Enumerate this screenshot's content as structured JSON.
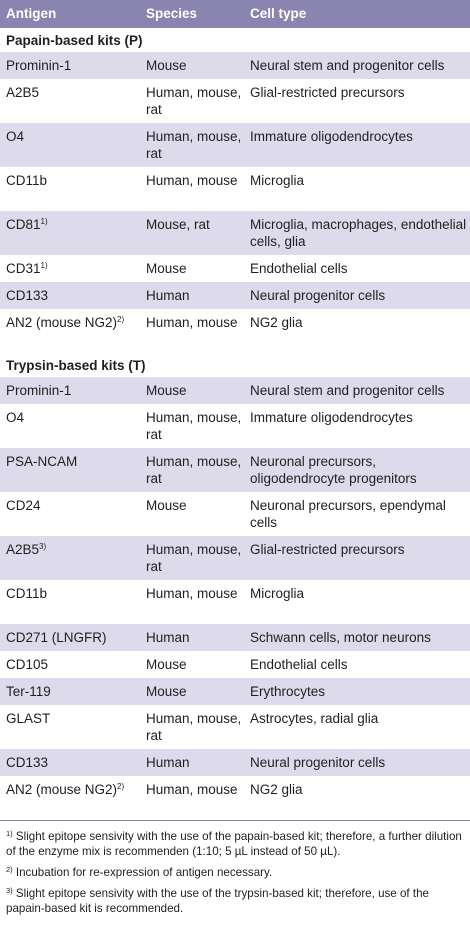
{
  "headers": {
    "antigen": "Antigen",
    "species": "Species",
    "cell_type": "Cell type"
  },
  "papain": {
    "title": "Papain-based kits (P)",
    "rows": [
      {
        "antigen": "Prominin-1",
        "sup": "",
        "species": "Mouse",
        "cell": "Neural stem and progenitor cells"
      },
      {
        "antigen": "A2B5",
        "sup": "",
        "species": "Human, mouse, rat",
        "cell": "Glial-restricted precursors"
      },
      {
        "antigen": "O4",
        "sup": "",
        "species": "Human, mouse, rat",
        "cell": "Immature oligodendrocytes"
      },
      {
        "antigen": "CD11b",
        "sup": "",
        "species": "Human, mouse",
        "cell": "Microglia"
      },
      {
        "antigen": "CD81",
        "sup": "1)",
        "species": "Mouse, rat",
        "cell": "Microglia, macrophages, endothelial cells, glia"
      },
      {
        "antigen": "CD31",
        "sup": "1)",
        "species": "Mouse",
        "cell": "Endothelial cells"
      },
      {
        "antigen": "CD133",
        "sup": "",
        "species": "Human",
        "cell": "Neural progenitor cells"
      },
      {
        "antigen": "AN2 (mouse NG2)",
        "sup": "2)",
        "species": "Human, mouse",
        "cell": "NG2 glia"
      }
    ]
  },
  "trypsin": {
    "title": "Trypsin-based kits (T)",
    "rows": [
      {
        "antigen": "Prominin-1",
        "sup": "",
        "species": "Mouse",
        "cell": "Neural stem and progenitor cells"
      },
      {
        "antigen": "O4",
        "sup": "",
        "species": "Human, mouse, rat",
        "cell": "Immature oligodendrocytes"
      },
      {
        "antigen": "PSA-NCAM",
        "sup": "",
        "species": "Human, mouse, rat",
        "cell": "Neuronal precursors, oligodendrocyte progenitors"
      },
      {
        "antigen": "CD24",
        "sup": "",
        "species": "Mouse",
        "cell": "Neuronal precursors, ependymal cells"
      },
      {
        "antigen": "A2B5",
        "sup": "3)",
        "species": "Human, mouse, rat",
        "cell": "Glial-restricted precursors"
      },
      {
        "antigen": "CD11b",
        "sup": "",
        "species": "Human, mouse",
        "cell": "Microglia"
      },
      {
        "antigen": "CD271 (LNGFR)",
        "sup": "",
        "species": "Human",
        "cell": "Schwann cells, motor neurons"
      },
      {
        "antigen": "CD105",
        "sup": "",
        "species": "Mouse",
        "cell": "Endothelial cells"
      },
      {
        "antigen": "Ter-119",
        "sup": "",
        "species": "Mouse",
        "cell": "Erythrocytes"
      },
      {
        "antigen": "GLAST",
        "sup": "",
        "species": "Human, mouse, rat",
        "cell": "Astrocytes, radial glia"
      },
      {
        "antigen": "CD133",
        "sup": "",
        "species": "Human",
        "cell": "Neural progenitor cells"
      },
      {
        "antigen": "AN2 (mouse NG2)",
        "sup": "2)",
        "species": "Human, mouse",
        "cell": "NG2 glia"
      }
    ]
  },
  "footnotes": [
    {
      "mark": "1)",
      "text": " Slight epitope sensivity with the use of the papain-based kit; therefore, a further dilution of the enzyme mix is recommenden (1:10; 5 µL instead of 50 µL)."
    },
    {
      "mark": "2)",
      "text": " Incubation for re-expression of antigen necessary."
    },
    {
      "mark": "3)",
      "text": " Slight epitope sensivity with the use of the trypsin-based kit; therefore, use of the papain-based kit is recommended."
    }
  ]
}
